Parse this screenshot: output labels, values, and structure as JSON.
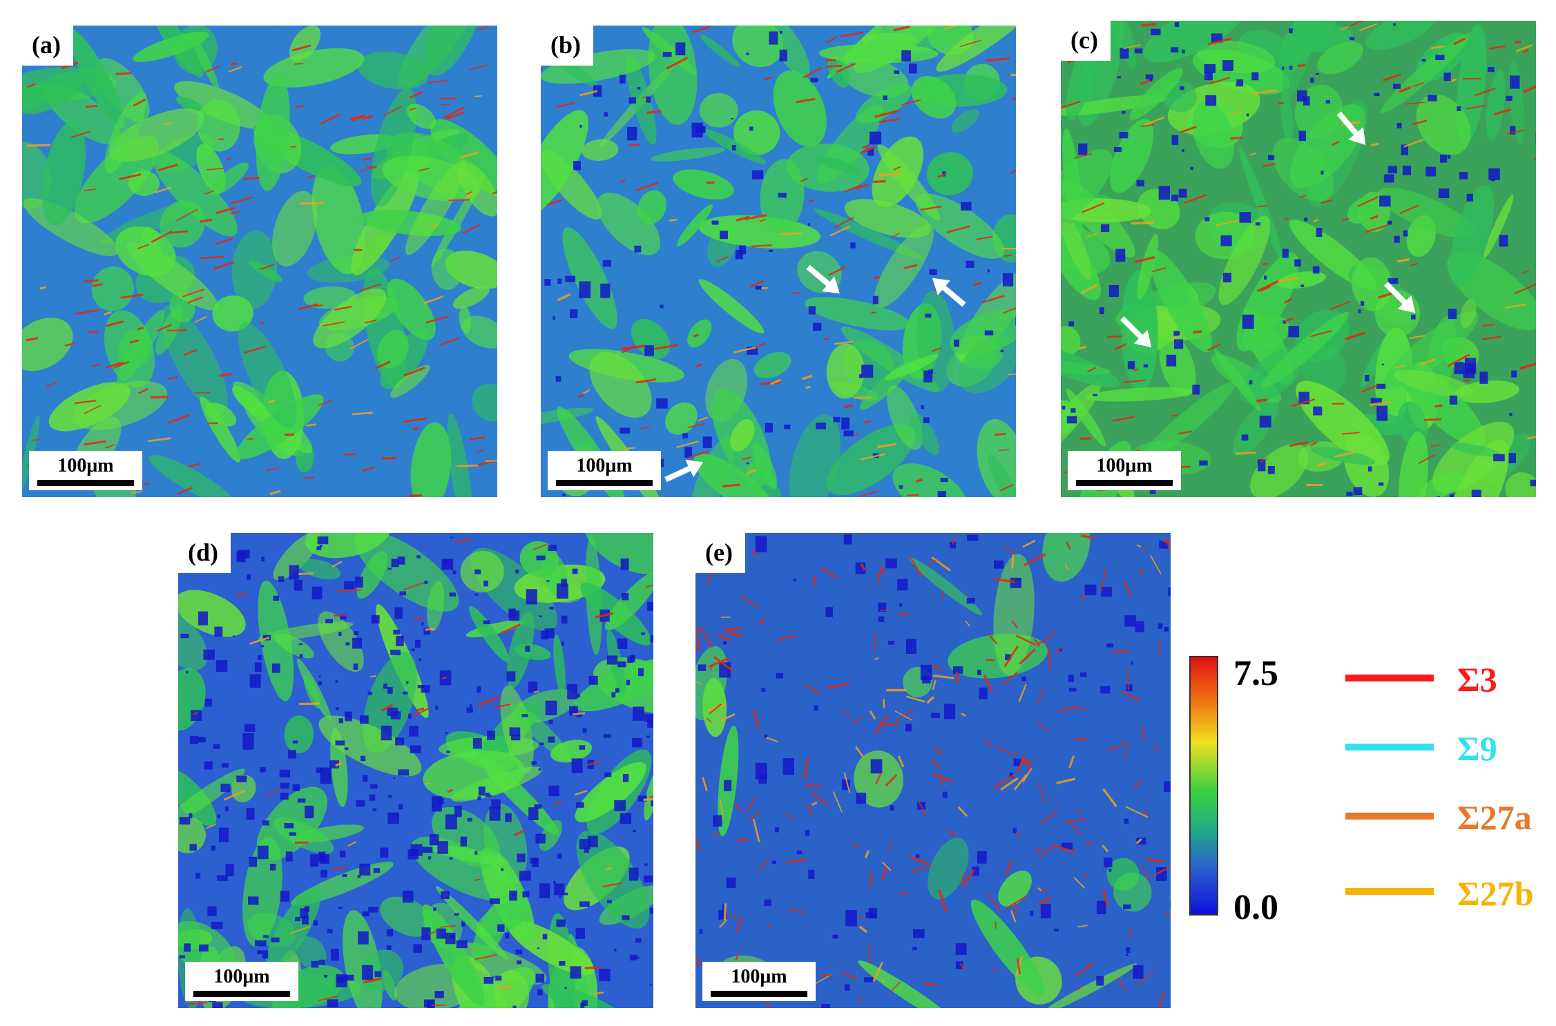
{
  "panels": [
    {
      "id": "a",
      "label": "(a)",
      "scalebar": "100μm"
    },
    {
      "id": "b",
      "label": "(b)",
      "scalebar": "100μm"
    },
    {
      "id": "c",
      "label": "(c)",
      "scalebar": "100μm"
    },
    {
      "id": "d",
      "label": "(d)",
      "scalebar": "100μm"
    },
    {
      "id": "e",
      "label": "(e)",
      "scalebar": "100μm"
    }
  ],
  "colorbar": {
    "max": "7.5",
    "min": "0.0",
    "colors": [
      "#e01010",
      "#f07a10",
      "#f0e020",
      "#3cd040",
      "#2a60d0",
      "#1010d8"
    ]
  },
  "legend": [
    {
      "label": "Σ3",
      "color": "#ff1a1a"
    },
    {
      "label": "Σ9",
      "color": "#33e0f0"
    },
    {
      "label": "Σ27a",
      "color": "#e8782a"
    },
    {
      "label": "Σ27b",
      "color": "#f5b400"
    }
  ],
  "arrow_color": "#ffffff"
}
